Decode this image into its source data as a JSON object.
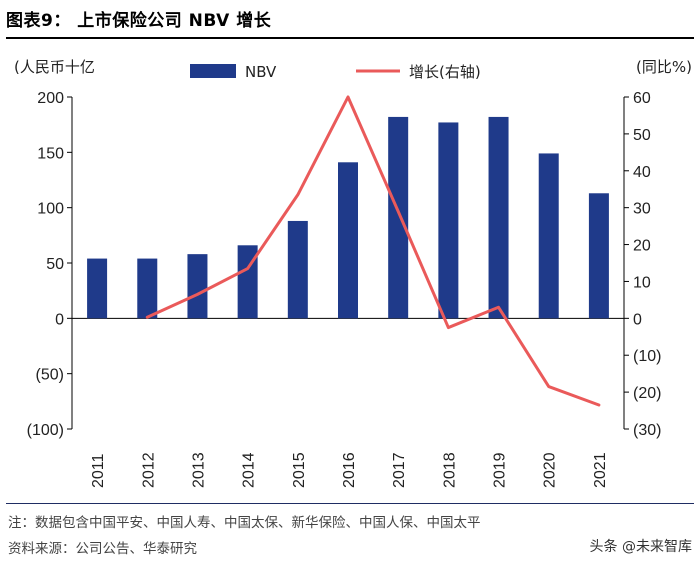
{
  "figure": {
    "title": "图表9：   上市保险公司 NBV 增长",
    "note": "注：数据包含中国平安、中国人寿、中国太保、新华保险、中国人保、中国太平",
    "source": "资料来源：公司公告、华泰研究",
    "watermark": "头条 @未来智库"
  },
  "chart_data": {
    "type": "bar+line",
    "categories": [
      "2011",
      "2012",
      "2013",
      "2014",
      "2015",
      "2016",
      "2017",
      "2018",
      "2019",
      "2020",
      "2021"
    ],
    "series": [
      {
        "name": "NBV",
        "type": "bar",
        "axis": "left",
        "color": "#1f3a8a",
        "values": [
          54,
          54,
          58,
          66,
          88,
          141,
          182,
          177,
          182,
          149,
          113
        ]
      },
      {
        "name": "增长(右轴)",
        "type": "line",
        "axis": "right",
        "color": "#ea5a5a",
        "values": [
          null,
          0.3,
          6.5,
          13.5,
          33.5,
          60,
          29,
          -2.5,
          3,
          -18.5,
          -23.5
        ]
      }
    ],
    "left_axis": {
      "label": "(人民币十亿",
      "min": -100,
      "max": 200,
      "ticks": [
        200,
        150,
        100,
        50,
        0,
        -50,
        -100
      ],
      "tick_labels": [
        "200",
        "150",
        "100",
        "50",
        "0",
        "(50)",
        "(100)"
      ]
    },
    "right_axis": {
      "label": "(同比%)",
      "min": -30,
      "max": 60,
      "ticks": [
        60,
        50,
        40,
        30,
        20,
        10,
        0,
        -10,
        -20,
        -30
      ],
      "tick_labels": [
        "60",
        "50",
        "40",
        "30",
        "20",
        "10",
        "0",
        "(10)",
        "(20)",
        "(30)"
      ]
    },
    "legend": {
      "position": "top-center",
      "labels": [
        "NBV",
        "增长(右轴)"
      ]
    }
  }
}
